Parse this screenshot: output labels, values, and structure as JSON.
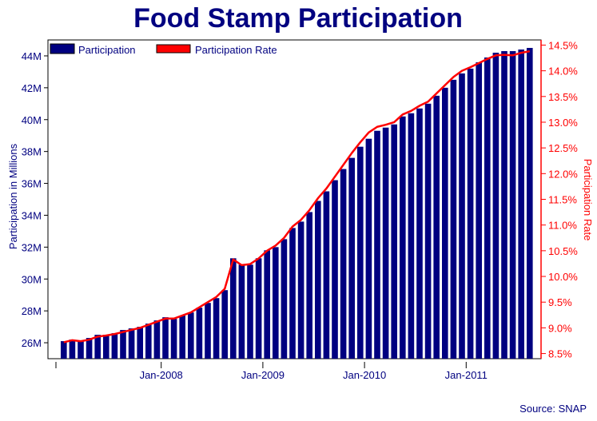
{
  "chart_data": {
    "type": "bar",
    "title": "Food Stamp Participation",
    "source": "Source: SNAP",
    "ylabel_left": "Participation in Millions",
    "ylabel_right": "Participation Rate",
    "legend": {
      "placement": "top-left",
      "entries": [
        "Participation",
        "Participation Rate"
      ]
    },
    "grid": false,
    "x_tick_labels": [
      "Jan-2008",
      "Jan-2009",
      "Jan-2010",
      "Jan-2011"
    ],
    "x_tick_months": [
      12,
      24,
      36,
      48
    ],
    "y_left": {
      "lim": [
        25.0,
        45.0
      ],
      "ticks": [
        26,
        28,
        30,
        32,
        34,
        36,
        38,
        40,
        42,
        44
      ],
      "tick_labels": [
        "26M",
        "28M",
        "30M",
        "32M",
        "34M",
        "36M",
        "38M",
        "40M",
        "42M",
        "44M"
      ]
    },
    "y_right": {
      "lim": [
        8.4,
        14.6
      ],
      "ticks": [
        8.5,
        9.0,
        9.5,
        10.0,
        10.5,
        11.0,
        11.5,
        12.0,
        12.5,
        13.0,
        13.5,
        14.0,
        14.5
      ],
      "tick_labels": [
        "8.5%",
        "9.0%",
        "9.5%",
        "10.0%",
        "10.5%",
        "11.0%",
        "11.5%",
        "12.0%",
        "12.5%",
        "13.0%",
        "13.5%",
        "14.0%",
        "14.5%"
      ]
    },
    "series": [
      {
        "name": "Participation",
        "axis": "left",
        "color": "#000080",
        "values": [
          26.1,
          26.2,
          26.1,
          26.3,
          26.5,
          26.5,
          26.6,
          26.8,
          26.9,
          27.0,
          27.2,
          27.4,
          27.6,
          27.5,
          27.7,
          27.9,
          28.2,
          28.5,
          28.8,
          29.3,
          31.3,
          30.9,
          30.9,
          31.3,
          31.8,
          32.0,
          32.5,
          33.2,
          33.6,
          34.2,
          34.9,
          35.5,
          36.2,
          36.9,
          37.6,
          38.3,
          38.8,
          39.3,
          39.5,
          39.7,
          40.2,
          40.4,
          40.7,
          41.0,
          41.5,
          42.0,
          42.5,
          42.9,
          43.2,
          43.6,
          43.9,
          44.2,
          44.3,
          44.3,
          44.4,
          44.5
        ]
      },
      {
        "name": "Participation Rate",
        "axis": "right",
        "color": "#ff0000",
        "values": [
          8.72,
          8.76,
          8.74,
          8.77,
          8.83,
          8.85,
          8.88,
          8.92,
          8.96,
          9.0,
          9.06,
          9.12,
          9.18,
          9.18,
          9.24,
          9.3,
          9.4,
          9.5,
          9.6,
          9.76,
          10.33,
          10.22,
          10.24,
          10.35,
          10.5,
          10.6,
          10.75,
          10.97,
          11.1,
          11.29,
          11.52,
          11.71,
          11.94,
          12.17,
          12.4,
          12.61,
          12.8,
          12.91,
          12.95,
          13.0,
          13.15,
          13.22,
          13.32,
          13.4,
          13.56,
          13.72,
          13.88,
          14.0,
          14.07,
          14.15,
          14.23,
          14.3,
          14.31,
          14.3,
          14.35,
          14.38
        ]
      }
    ]
  }
}
